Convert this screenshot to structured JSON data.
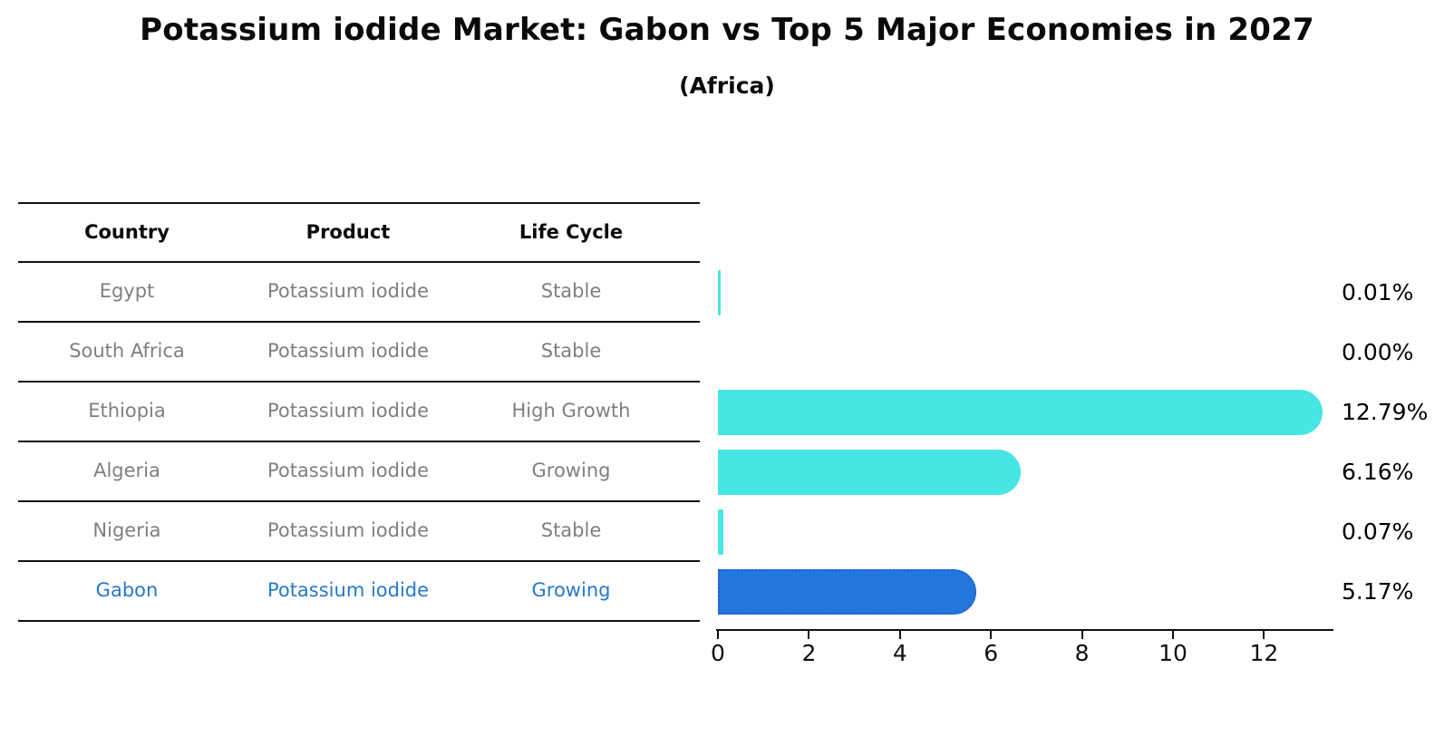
{
  "title": "Potassium iodide Market: Gabon vs Top 5 Major Economies in 2027",
  "subtitle": "(Africa)",
  "table": {
    "headers": [
      "Country",
      "Product",
      "Life Cycle"
    ],
    "rows": [
      {
        "country": "Egypt",
        "product": "Potassium iodide",
        "life_cycle": "Stable",
        "highlight": false
      },
      {
        "country": "South Africa",
        "product": "Potassium iodide",
        "life_cycle": "Stable",
        "highlight": false
      },
      {
        "country": "Ethiopia",
        "product": "Potassium iodide",
        "life_cycle": "High Growth",
        "highlight": false
      },
      {
        "country": "Algeria",
        "product": "Potassium iodide",
        "life_cycle": "Growing",
        "highlight": false
      },
      {
        "country": "Nigeria",
        "product": "Potassium iodide",
        "life_cycle": "Stable",
        "highlight": false
      },
      {
        "country": "Gabon",
        "product": "Potassium iodide",
        "life_cycle": "Growing",
        "highlight": true
      }
    ]
  },
  "chart_data": {
    "type": "bar",
    "orientation": "horizontal",
    "title": "Potassium iodide Market: Gabon vs Top 5 Major Economies in 2027",
    "subtitle": "(Africa)",
    "categories": [
      "Egypt",
      "South Africa",
      "Ethiopia",
      "Algeria",
      "Nigeria",
      "Gabon"
    ],
    "values": [
      0.01,
      0.0,
      12.79,
      6.16,
      0.07,
      5.17
    ],
    "value_labels": [
      "0.01%",
      "0.00%",
      "12.79%",
      "6.16%",
      "0.07%",
      "5.17%"
    ],
    "xlabel": "",
    "ylabel": "",
    "xlim": [
      0,
      13.43
    ],
    "xticks": [
      0,
      2,
      4,
      6,
      8,
      10,
      12
    ],
    "grid": false,
    "legend": "none",
    "highlight_category": "Gabon",
    "colors": {
      "bar": "#47e6e2",
      "highlight_bar": "#2376dd",
      "highlight_border": "#1d5fd0",
      "highlight_text": "#2878c8",
      "table_text": "#7f7f7f",
      "text": "#0a0a0a"
    }
  }
}
